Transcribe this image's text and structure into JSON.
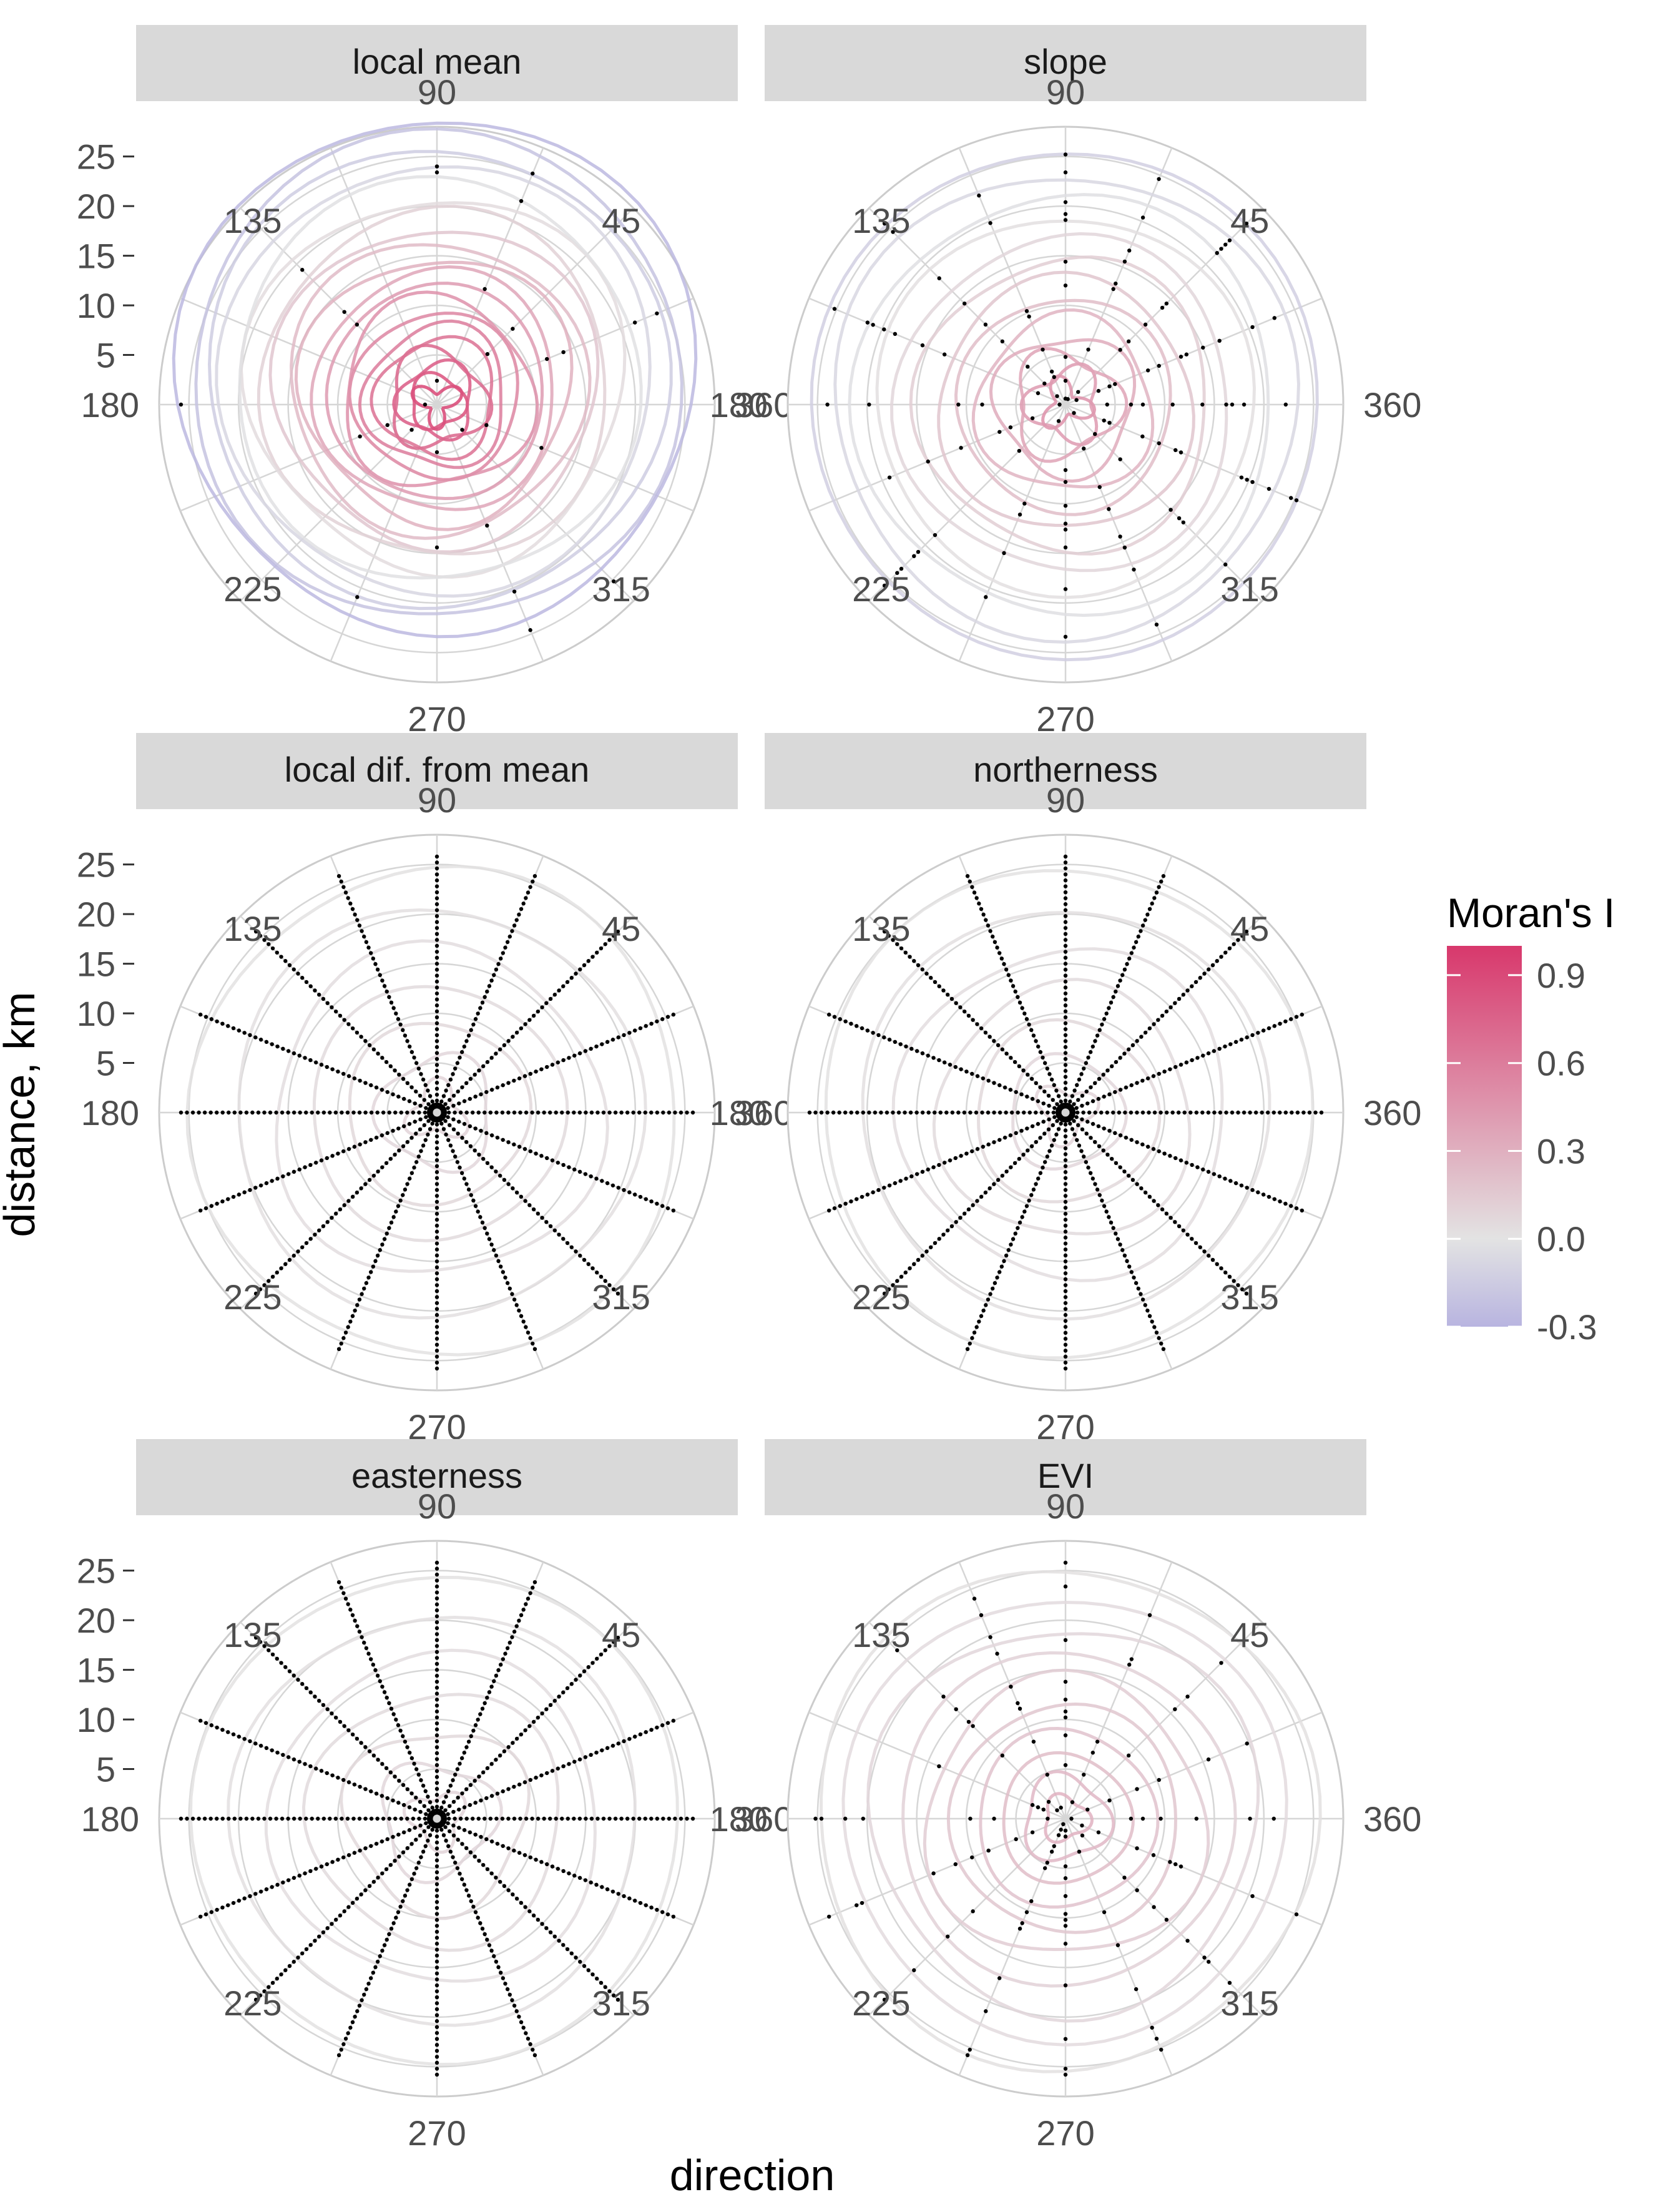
{
  "axes": {
    "x_title": "direction",
    "y_title": "distance, km",
    "angle_labels": [
      "90",
      "45",
      "360",
      "315",
      "270",
      "225",
      "180",
      "135"
    ],
    "distance_ticks": [
      "25",
      "20",
      "15",
      "10",
      "5"
    ]
  },
  "legend": {
    "title": "Moran's I",
    "ticks": [
      "0.9",
      "0.6",
      "0.3",
      "0.0",
      "-0.3"
    ],
    "tick_values": [
      0.9,
      0.6,
      0.3,
      0.0,
      -0.3
    ],
    "range": [
      -0.3,
      1.0
    ],
    "colors": {
      "low": "#b8b4e0",
      "mid": "#e3e3e3",
      "high": "#d8386c"
    }
  },
  "chart_data": {
    "type": "polar contour",
    "grid": true,
    "legend_position": "right",
    "panels": [
      {
        "title": "local mean",
        "max_value": 0.95,
        "min_value": -0.3,
        "points": "few"
      },
      {
        "title": "slope",
        "max_value": 0.5,
        "min_value": -0.15,
        "points": "scattered"
      },
      {
        "title": "local dif. from mean",
        "max_value": 0.1,
        "min_value": 0.0,
        "points": "dense"
      },
      {
        "title": "northerness",
        "max_value": 0.1,
        "min_value": 0.0,
        "points": "dense"
      },
      {
        "title": "easterness",
        "max_value": 0.1,
        "min_value": 0.0,
        "points": "dense"
      },
      {
        "title": "EVI",
        "max_value": 0.3,
        "min_value": 0.0,
        "points": "scattered"
      }
    ]
  }
}
